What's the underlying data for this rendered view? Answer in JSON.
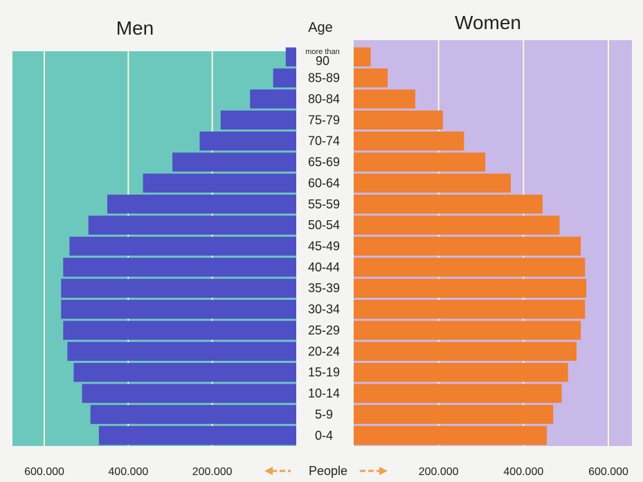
{
  "chart_data": {
    "type": "bar",
    "orientation": "horizontal-pyramid",
    "left_title": "Men",
    "right_title": "Women",
    "categories_label": "Age",
    "xlabel": "People",
    "categories": [
      "0-4",
      "5-9",
      "10-14",
      "15-19",
      "20-24",
      "25-29",
      "30-34",
      "35-39",
      "40-44",
      "45-49",
      "50-54",
      "55-59",
      "60-64",
      "65-69",
      "70-74",
      "75-79",
      "80-84",
      "85-89",
      "more than 90"
    ],
    "series": [
      {
        "name": "Men",
        "color": "#4f4fc6",
        "values": [
          470000,
          490000,
          510000,
          530000,
          545000,
          555000,
          560000,
          560000,
          555000,
          540000,
          495000,
          450000,
          365000,
          295000,
          230000,
          180000,
          110000,
          55000,
          25000
        ]
      },
      {
        "name": "Women",
        "color": "#f07f2e",
        "values": [
          455000,
          470000,
          490000,
          505000,
          525000,
          535000,
          545000,
          548000,
          545000,
          535000,
          485000,
          445000,
          370000,
          310000,
          260000,
          210000,
          145000,
          80000,
          40000
        ]
      }
    ],
    "xlim": [
      0,
      600000
    ],
    "tick_values": [
      600000,
      400000,
      200000
    ],
    "tick_labels": [
      "600.000",
      "400.000",
      "200.000"
    ],
    "background_colors": {
      "men_panel": "#6cc8bc",
      "women_panel": "#c9b9e8",
      "gridline": "#fbf7d8",
      "arrow": "#f0a050"
    },
    "grid": true
  }
}
